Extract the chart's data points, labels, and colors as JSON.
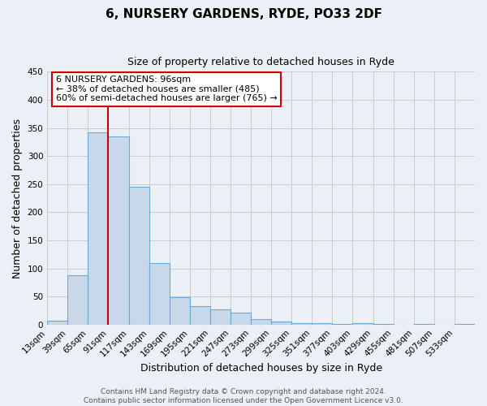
{
  "title": "6, NURSERY GARDENS, RYDE, PO33 2DF",
  "subtitle": "Size of property relative to detached houses in Ryde",
  "xlabel": "Distribution of detached houses by size in Ryde",
  "ylabel": "Number of detached properties",
  "footer_line1": "Contains HM Land Registry data © Crown copyright and database right 2024.",
  "footer_line2": "Contains public sector information licensed under the Open Government Licence v3.0.",
  "bins": [
    "13sqm",
    "39sqm",
    "65sqm",
    "91sqm",
    "117sqm",
    "143sqm",
    "169sqm",
    "195sqm",
    "221sqm",
    "247sqm",
    "273sqm",
    "299sqm",
    "325sqm",
    "351sqm",
    "377sqm",
    "403sqm",
    "429sqm",
    "455sqm",
    "481sqm",
    "507sqm",
    "533sqm"
  ],
  "bar_values": [
    7,
    88,
    342,
    335,
    245,
    110,
    49,
    33,
    27,
    22,
    10,
    5,
    2,
    2,
    1,
    3,
    1,
    0,
    1,
    0,
    1
  ],
  "bar_color": "#c8d8ea",
  "bar_edge_color": "#6aaad4",
  "annotation_line1": "6 NURSERY GARDENS: 96sqm",
  "annotation_line2": "← 38% of detached houses are smaller (485)",
  "annotation_line3": "60% of semi-detached houses are larger (765) →",
  "annotation_box_color": "#ffffff",
  "annotation_box_edge_color": "#cc0000",
  "vline_color": "#cc0000",
  "vline_x_index": 3,
  "bin_edges": [
    13,
    39,
    65,
    91,
    117,
    143,
    169,
    195,
    221,
    247,
    273,
    299,
    325,
    351,
    377,
    403,
    429,
    455,
    481,
    507,
    533,
    559
  ],
  "ylim": [
    0,
    450
  ],
  "yticks": [
    0,
    50,
    100,
    150,
    200,
    250,
    300,
    350,
    400,
    450
  ],
  "grid_color": "#cccccc",
  "bg_color": "#eaf0f6",
  "title_fontsize": 11,
  "subtitle_fontsize": 9,
  "axis_label_fontsize": 9,
  "tick_fontsize": 7.5,
  "footer_fontsize": 6.5
}
